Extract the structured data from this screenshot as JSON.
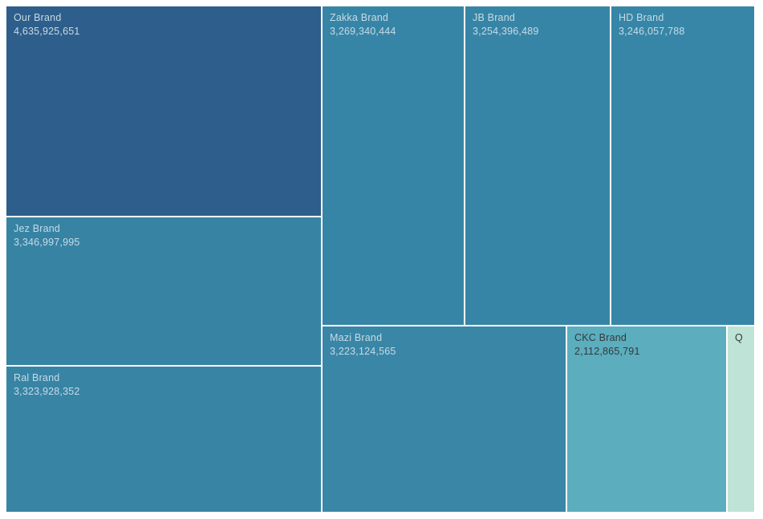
{
  "chart_data": {
    "type": "treemap",
    "title": "",
    "legend": "off",
    "background_color": "#ffffff",
    "gutter_color": "#ffffff",
    "text_color_on_dark": "#c7dbe6",
    "text_color_on_light": "#333a3d",
    "items": [
      {
        "label": "Our Brand",
        "value": 4635925651,
        "value_display": "4,635,925,651",
        "color": "#2e5e8b"
      },
      {
        "label": "Jez Brand",
        "value": 3346997995,
        "value_display": "3,346,997,995",
        "color": "#3783a4"
      },
      {
        "label": "Ral Brand",
        "value": 3323928352,
        "value_display": "3,323,928,352",
        "color": "#3884a5"
      },
      {
        "label": "Zakka Brand",
        "value": 3269340444,
        "value_display": "3,269,340,444",
        "color": "#3785a6"
      },
      {
        "label": "JB Brand",
        "value": 3254396489,
        "value_display": "3,254,396,489",
        "color": "#3785a6"
      },
      {
        "label": "HD Brand",
        "value": 3246057788,
        "value_display": "3,246,057,788",
        "color": "#3786a7"
      },
      {
        "label": "Mazi Brand",
        "value": 3223124565,
        "value_display": "3,223,124,565",
        "color": "#3986a6"
      },
      {
        "label": "CKC Brand",
        "value": 2112865791,
        "value_display": "2,112,865,791",
        "color": "#5cadbd"
      },
      {
        "label": "Q",
        "value_display": "",
        "color": "#bfe3d6",
        "label_truncated": true
      }
    ]
  }
}
